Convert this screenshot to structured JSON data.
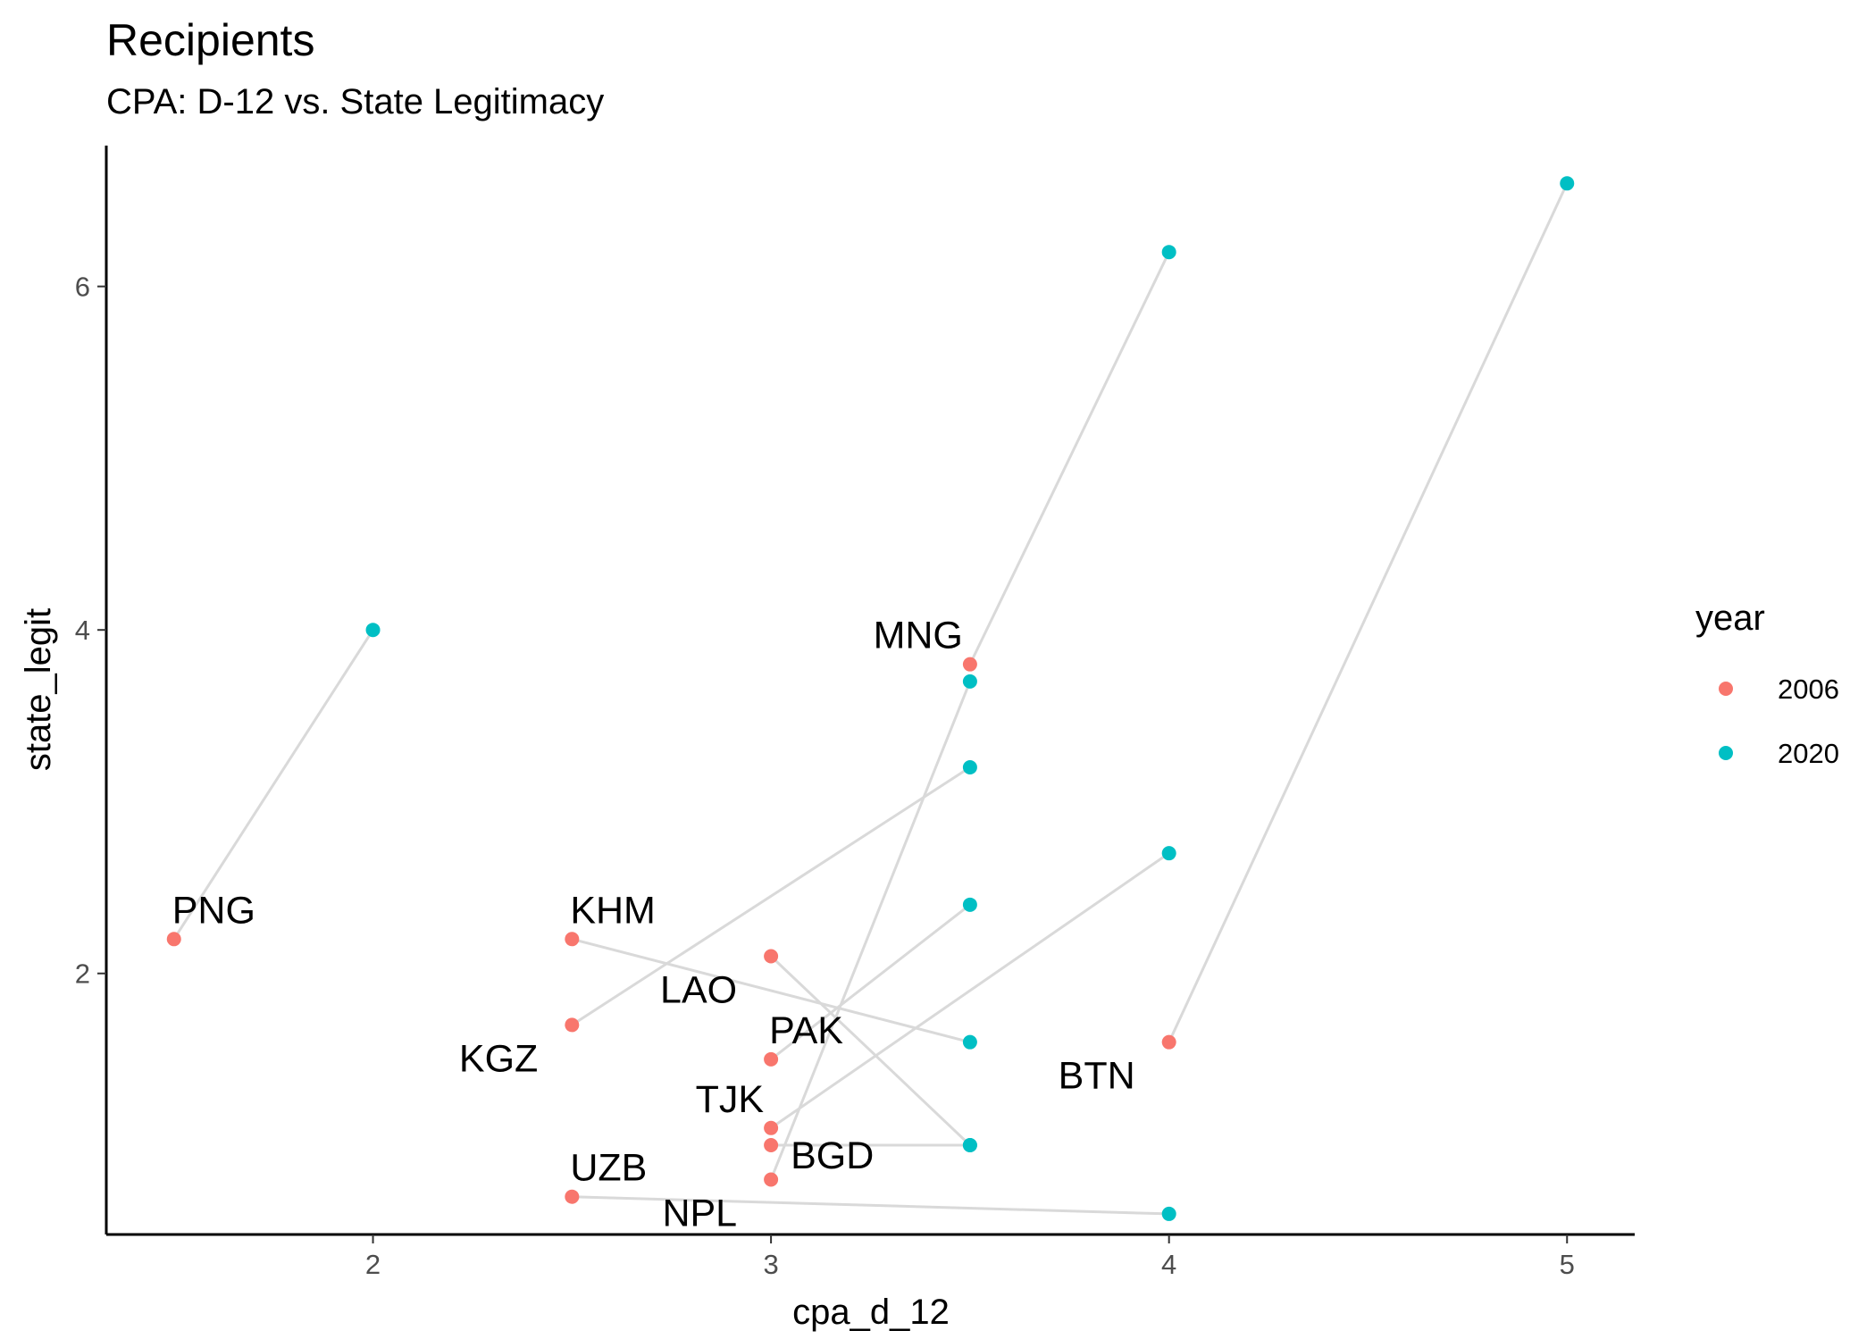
{
  "chart_data": {
    "type": "scatter",
    "title": "Recipients",
    "subtitle": "CPA: D-12 vs. State Legitimacy",
    "xlabel": "cpa_d_12",
    "ylabel": "state_legit",
    "xlim": [
      1.33,
      5.17
    ],
    "ylim": [
      0.48,
      6.82
    ],
    "xticks": [
      2,
      3,
      4,
      5
    ],
    "yticks": [
      2,
      4,
      6
    ],
    "grid": false,
    "legend": {
      "title": "year",
      "position": "right",
      "entries": [
        {
          "label": "2006",
          "color": "#F8766D"
        },
        {
          "label": "2020",
          "color": "#00BFC4"
        }
      ]
    },
    "connector_color": "#d9d9d9",
    "countries": [
      {
        "label": "PNG",
        "x2006": 1.5,
        "y2006": 2.2,
        "x2020": 2.0,
        "y2020": 4.0,
        "label_pos": "above-right"
      },
      {
        "label": "KHM",
        "x2006": 2.5,
        "y2006": 2.2,
        "x2020": 3.5,
        "y2020": 1.6,
        "label_pos": "above-right"
      },
      {
        "label": "KGZ",
        "x2006": 2.5,
        "y2006": 1.7,
        "x2020": 3.5,
        "y2020": 3.2,
        "label_pos": "below-left"
      },
      {
        "label": "LAO",
        "x2006": 3.0,
        "y2006": 2.1,
        "x2020": 3.5,
        "y2020": 1.0,
        "label_pos": "below-left"
      },
      {
        "label": "PAK",
        "x2006": 3.0,
        "y2006": 1.5,
        "x2020": 3.5,
        "y2020": 2.4,
        "label_pos": "above-right"
      },
      {
        "label": "TJK",
        "x2006": 3.0,
        "y2006": 1.1,
        "x2020": 4.0,
        "y2020": 2.7,
        "label_pos": "above-left"
      },
      {
        "label": "BGD",
        "x2006": 3.0,
        "y2006": 1.0,
        "x2020": 3.5,
        "y2020": 1.0,
        "label_pos": "below-right"
      },
      {
        "label": "NPL",
        "x2006": 3.0,
        "y2006": 0.8,
        "x2020": 3.5,
        "y2020": 3.7,
        "label_pos": "below-left"
      },
      {
        "label": "UZB",
        "x2006": 2.5,
        "y2006": 0.7,
        "x2020": 4.0,
        "y2020": 0.6,
        "label_pos": "above-right"
      },
      {
        "label": "MNG",
        "x2006": 3.5,
        "y2006": 3.8,
        "x2020": 4.0,
        "y2020": 6.2,
        "label_pos": "above-left"
      },
      {
        "label": "BTN",
        "x2006": 4.0,
        "y2006": 1.6,
        "x2020": 5.0,
        "y2020": 6.6,
        "label_pos": "below-left"
      }
    ]
  }
}
